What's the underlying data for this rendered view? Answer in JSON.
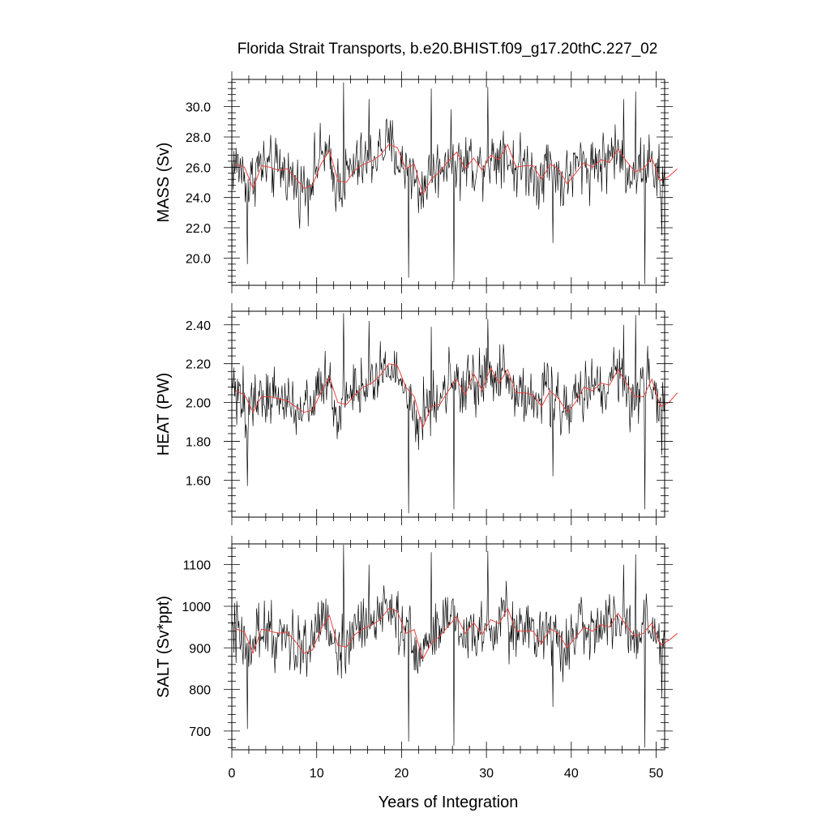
{
  "figure": {
    "title": "Florida Strait Transports, b.e20.BHIST.f09_g17.20thC.227_02",
    "xlabel": "Years of Integration"
  },
  "chart_data": [
    {
      "type": "line",
      "ylabel": "MASS (Sv)",
      "xlim": [
        0,
        51
      ],
      "ylim": [
        18.2,
        31.8
      ],
      "xticks": [
        0,
        10,
        20,
        30,
        40,
        50
      ],
      "yticks": [
        20.0,
        22.0,
        24.0,
        26.0,
        28.0,
        30.0
      ],
      "ytick_labels": [
        "20.0",
        "22.0",
        "24.0",
        "26.0",
        "28.0",
        "30.0"
      ],
      "show_xtick_labels": false,
      "grid": false,
      "series": [
        {
          "role": "monthly",
          "color": "#000000",
          "mean": 26.0,
          "amplitude": 1.6,
          "annual_mean": [
            26.2,
            26.0,
            24.6,
            26.1,
            26.0,
            25.8,
            25.9,
            25.3,
            24.6,
            24.8,
            26.2,
            27.1,
            25.1,
            25.0,
            25.8,
            26.2,
            26.4,
            26.8,
            27.5,
            27.3,
            25.9,
            26.2,
            24.2,
            25.2,
            25.7,
            26.4,
            27.0,
            25.9,
            26.6,
            25.8,
            26.8,
            26.5,
            27.5,
            26.0,
            26.1,
            26.1,
            25.2,
            26.2,
            25.9,
            24.9,
            25.6,
            26.3,
            26.0,
            26.5,
            26.3,
            27.2,
            26.4,
            25.7,
            25.9,
            26.6,
            25.1,
            25.4,
            25.9
          ],
          "spikes": [
            [
              1.8,
              19.6
            ],
            [
              13.2,
              31.6
            ],
            [
              16.2,
              30.5
            ],
            [
              20.8,
              18.7
            ],
            [
              23.5,
              31.2
            ],
            [
              26.2,
              18.4
            ],
            [
              30.2,
              31.3
            ],
            [
              37.8,
              21.0
            ],
            [
              46.2,
              30.5
            ],
            [
              47.6,
              31.0
            ],
            [
              48.7,
              18.3
            ],
            [
              50.7,
              21.5
            ]
          ]
        },
        {
          "role": "annual",
          "color": "#e8413c"
        }
      ]
    },
    {
      "type": "line",
      "ylabel": "HEAT (PW)",
      "xlim": [
        0,
        51
      ],
      "ylim": [
        1.41,
        2.47
      ],
      "xticks": [
        0,
        10,
        20,
        30,
        40,
        50
      ],
      "yticks": [
        1.6,
        1.8,
        2.0,
        2.2,
        2.4
      ],
      "ytick_labels": [
        "1.60",
        "1.80",
        "2.00",
        "2.20",
        "2.40"
      ],
      "show_xtick_labels": false,
      "grid": false,
      "series": [
        {
          "role": "monthly",
          "color": "#000000",
          "mean": 2.05,
          "amplitude": 0.12,
          "annual_mean": [
            2.06,
            2.04,
            1.95,
            2.03,
            2.03,
            2.02,
            2.01,
            1.98,
            1.95,
            1.96,
            2.05,
            2.13,
            2.0,
            1.99,
            2.04,
            2.08,
            2.1,
            2.14,
            2.2,
            2.19,
            2.08,
            2.03,
            1.87,
            1.98,
            1.99,
            2.06,
            2.12,
            2.04,
            2.15,
            2.06,
            2.18,
            2.1,
            2.17,
            2.05,
            2.05,
            2.04,
            1.98,
            2.06,
            2.02,
            1.95,
            2.0,
            2.08,
            2.06,
            2.1,
            2.09,
            2.17,
            2.1,
            2.03,
            2.03,
            2.12,
            1.98,
            2.0,
            2.05
          ],
          "spikes": [
            [
              1.8,
              1.57
            ],
            [
              13.2,
              2.46
            ],
            [
              16.2,
              2.42
            ],
            [
              20.8,
              1.43
            ],
            [
              23.5,
              2.39
            ],
            [
              26.2,
              1.45
            ],
            [
              30.2,
              2.43
            ],
            [
              37.8,
              1.62
            ],
            [
              46.2,
              2.4
            ],
            [
              47.6,
              2.45
            ],
            [
              48.7,
              1.45
            ],
            [
              50.7,
              1.73
            ]
          ]
        },
        {
          "role": "annual",
          "color": "#e8413c"
        }
      ]
    },
    {
      "type": "line",
      "ylabel": "SALT (Sv*ppt)",
      "xlim": [
        0,
        51
      ],
      "ylim": [
        655,
        1150
      ],
      "xticks": [
        0,
        10,
        20,
        30,
        40,
        50
      ],
      "xtick_labels": [
        "0",
        "10",
        "20",
        "30",
        "40",
        "50"
      ],
      "yticks": [
        700,
        800,
        900,
        1000,
        1100
      ],
      "ytick_labels": [
        "700",
        "800",
        "900",
        "1000",
        "1100"
      ],
      "show_xtick_labels": true,
      "grid": false,
      "series": [
        {
          "role": "monthly",
          "color": "#000000",
          "mean": 935,
          "amplitude": 55,
          "annual_mean": [
            945,
            938,
            888,
            945,
            940,
            935,
            938,
            915,
            887,
            895,
            945,
            978,
            906,
            902,
            932,
            946,
            955,
            968,
            995,
            988,
            935,
            944,
            873,
            911,
            928,
            952,
            975,
            935,
            961,
            932,
            968,
            958,
            995,
            940,
            941,
            940,
            910,
            946,
            935,
            900,
            925,
            950,
            940,
            956,
            950,
            983,
            953,
            928,
            935,
            960,
            907,
            918,
            935
          ],
          "spikes": [
            [
              1.8,
              705
            ],
            [
              13.2,
              1148
            ],
            [
              16.2,
              1100
            ],
            [
              20.8,
              675
            ],
            [
              23.5,
              1130
            ],
            [
              26.2,
              665
            ],
            [
              30.2,
              1133
            ],
            [
              37.8,
              758
            ],
            [
              46.2,
              1100
            ],
            [
              47.6,
              1125
            ],
            [
              48.7,
              660
            ],
            [
              50.7,
              780
            ]
          ]
        },
        {
          "role": "annual",
          "color": "#e8413c"
        }
      ]
    }
  ]
}
